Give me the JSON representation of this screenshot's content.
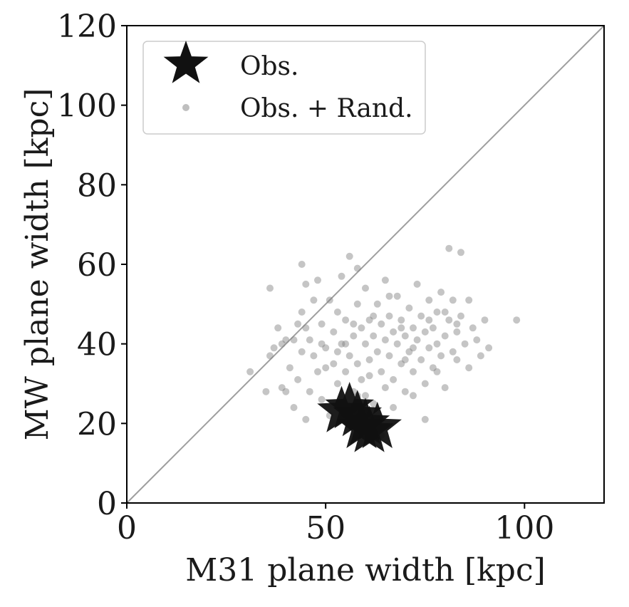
{
  "chart_data": {
    "type": "scatter",
    "xlabel": "M31 plane width [kpc]",
    "ylabel": "MW plane width [kpc]",
    "xlim": [
      0,
      120
    ],
    "ylim": [
      0,
      120
    ],
    "xticks": [
      0,
      50,
      100
    ],
    "yticks": [
      0,
      20,
      40,
      60,
      80,
      100,
      120
    ],
    "xtick_labels": [
      "0",
      "50",
      "100"
    ],
    "ytick_labels": [
      "0",
      "20",
      "40",
      "60",
      "80",
      "100",
      "120"
    ],
    "grid": false,
    "legend_placement": "top-left",
    "reference_line": {
      "from": [
        0,
        0
      ],
      "to": [
        120,
        120
      ]
    },
    "series": [
      {
        "name": "Obs.",
        "marker": "star",
        "color": "#111111",
        "points": [
          [
            56,
            24
          ],
          [
            54,
            23
          ],
          [
            58,
            22
          ],
          [
            59,
            19
          ],
          [
            61,
            18
          ],
          [
            63,
            19
          ],
          [
            60,
            20
          ]
        ]
      },
      {
        "name": "Obs. + Rand.",
        "marker": "circle",
        "color": "#7f7f7f",
        "points": [
          [
            31,
            33
          ],
          [
            35,
            28
          ],
          [
            36,
            37
          ],
          [
            37,
            39
          ],
          [
            38,
            44
          ],
          [
            39,
            29
          ],
          [
            40,
            28
          ],
          [
            41,
            34
          ],
          [
            42,
            41
          ],
          [
            42,
            24
          ],
          [
            43,
            45
          ],
          [
            43,
            31
          ],
          [
            44,
            38
          ],
          [
            44,
            60
          ],
          [
            45,
            21
          ],
          [
            45,
            55
          ],
          [
            46,
            41
          ],
          [
            46,
            28
          ],
          [
            47,
            37
          ],
          [
            48,
            33
          ],
          [
            48,
            56
          ],
          [
            49,
            45
          ],
          [
            49,
            26
          ],
          [
            50,
            39
          ],
          [
            51,
            51
          ],
          [
            51,
            22
          ],
          [
            52,
            35
          ],
          [
            52,
            43
          ],
          [
            53,
            48
          ],
          [
            53,
            30
          ],
          [
            54,
            57
          ],
          [
            54,
            40
          ],
          [
            55,
            33
          ],
          [
            55,
            46
          ],
          [
            56,
            62
          ],
          [
            56,
            37
          ],
          [
            57,
            28
          ],
          [
            57,
            42
          ],
          [
            58,
            50
          ],
          [
            58,
            35
          ],
          [
            59,
            44
          ],
          [
            59,
            31
          ],
          [
            60,
            40
          ],
          [
            60,
            54
          ],
          [
            60,
            27
          ],
          [
            61,
            46
          ],
          [
            61,
            36
          ],
          [
            62,
            42
          ],
          [
            62,
            25
          ],
          [
            63,
            38
          ],
          [
            63,
            50
          ],
          [
            64,
            33
          ],
          [
            64,
            45
          ],
          [
            65,
            41
          ],
          [
            65,
            56
          ],
          [
            65,
            29
          ],
          [
            66,
            47
          ],
          [
            66,
            37
          ],
          [
            67,
            43
          ],
          [
            67,
            31
          ],
          [
            68,
            52
          ],
          [
            68,
            40
          ],
          [
            69,
            35
          ],
          [
            69,
            46
          ],
          [
            70,
            42
          ],
          [
            70,
            28
          ],
          [
            71,
            49
          ],
          [
            71,
            38
          ],
          [
            72,
            44
          ],
          [
            72,
            33
          ],
          [
            73,
            55
          ],
          [
            73,
            41
          ],
          [
            74,
            36
          ],
          [
            74,
            47
          ],
          [
            75,
            43
          ],
          [
            75,
            30
          ],
          [
            76,
            39
          ],
          [
            76,
            51
          ],
          [
            77,
            44
          ],
          [
            77,
            34
          ],
          [
            78,
            48
          ],
          [
            78,
            40
          ],
          [
            79,
            37
          ],
          [
            79,
            53
          ],
          [
            80,
            42
          ],
          [
            80,
            29
          ],
          [
            81,
            46
          ],
          [
            81,
            64
          ],
          [
            82,
            38
          ],
          [
            82,
            51
          ],
          [
            83,
            43
          ],
          [
            83,
            36
          ],
          [
            84,
            63
          ],
          [
            84,
            47
          ],
          [
            85,
            40
          ],
          [
            86,
            34
          ],
          [
            86,
            51
          ],
          [
            87,
            44
          ],
          [
            88,
            41
          ],
          [
            89,
            37
          ],
          [
            90,
            46
          ],
          [
            91,
            39
          ],
          [
            98,
            46
          ],
          [
            36,
            54
          ],
          [
            39,
            40
          ],
          [
            44,
            48
          ],
          [
            47,
            51
          ],
          [
            50,
            34
          ],
          [
            53,
            38
          ],
          [
            58,
            59
          ],
          [
            62,
            47
          ],
          [
            66,
            52
          ],
          [
            69,
            44
          ],
          [
            72,
            39
          ],
          [
            76,
            46
          ],
          [
            80,
            48
          ],
          [
            83,
            45
          ],
          [
            67,
            24
          ],
          [
            72,
            27
          ],
          [
            75,
            21
          ],
          [
            64,
            17
          ],
          [
            58,
            27
          ],
          [
            61,
            32
          ],
          [
            55,
            40
          ],
          [
            45,
            44
          ],
          [
            40,
            41
          ],
          [
            49,
            40
          ],
          [
            57,
            45
          ],
          [
            70,
            36
          ],
          [
            78,
            33
          ]
        ]
      }
    ]
  }
}
